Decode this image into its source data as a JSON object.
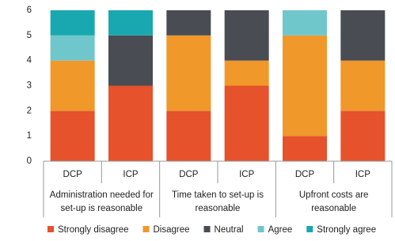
{
  "chart_data": {
    "type": "stacked-bar",
    "categories": [
      "DCP",
      "ICP",
      "DCP",
      "ICP",
      "DCP",
      "ICP"
    ],
    "groups": [
      {
        "lines": [
          "Administration needed for",
          "set-up is reasonable"
        ]
      },
      {
        "lines": [
          "Time taken to set-up is",
          "reasonable"
        ]
      },
      {
        "lines": [
          "Upfront costs are",
          "reasonable"
        ]
      }
    ],
    "series": [
      {
        "name": "Strongly disagree",
        "color": "#e5522b",
        "values": [
          2,
          3,
          2,
          3,
          1,
          2
        ]
      },
      {
        "name": "Disagree",
        "color": "#f0982a",
        "values": [
          2,
          0,
          3,
          1,
          4,
          2
        ]
      },
      {
        "name": "Neutral",
        "color": "#4a4c54",
        "values": [
          0,
          2,
          1,
          2,
          0,
          2
        ]
      },
      {
        "name": "Agree",
        "color": "#6fc7cc",
        "values": [
          1,
          0,
          0,
          0,
          1,
          0
        ]
      },
      {
        "name": "Strongly agree",
        "color": "#1aa8b0",
        "values": [
          1,
          1,
          0,
          0,
          0,
          0
        ]
      }
    ],
    "ylim": [
      0,
      6
    ],
    "yticks": [
      0,
      1,
      2,
      3,
      4,
      5,
      6
    ],
    "legend": "bottom"
  }
}
